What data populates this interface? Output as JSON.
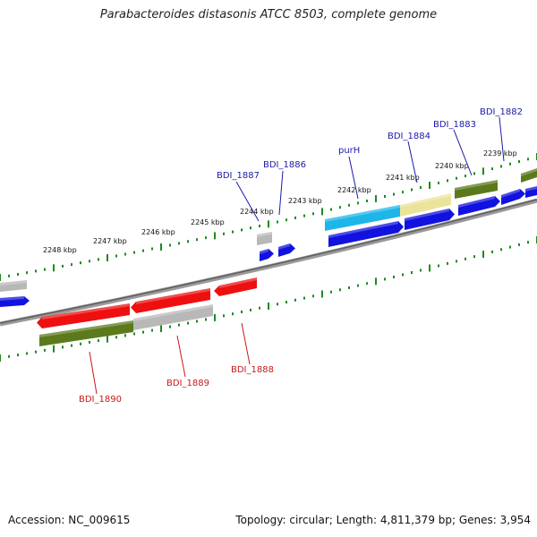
{
  "title": "Parabacteroides distasonis ATCC 8503, complete genome",
  "footer": {
    "accession": "Accession: NC_009615",
    "summary": "Topology: circular; Length: 4,811,379 bp; Genes: 3,954"
  },
  "colors": {
    "backbone": "#7a7a7a",
    "tick": "#1e8a1e",
    "forward_label": "#1a1aa8",
    "reverse_label": "#c81818",
    "blue_gene": "#1212e0",
    "cyan_gene": "#1eb6e8",
    "olive_gene": "#5c7a1c",
    "khaki_gene": "#ece39a",
    "gray_gene": "#b8b8b8",
    "red_gene": "#ee1010"
  },
  "scale_labels": [
    "2248 kbp",
    "2247 kbp",
    "2246 kbp",
    "2245 kbp",
    "2244 kbp",
    "2243 kbp",
    "2242 kbp",
    "2241 kbp",
    "2240 kbp",
    "2239 kbp"
  ],
  "forward_gene_labels": [
    "BDI_1887",
    "BDI_1886",
    "purH",
    "BDI_1884",
    "BDI_1883",
    "BDI_1882"
  ],
  "reverse_gene_labels": [
    "BDI_1890",
    "BDI_1889",
    "BDI_1888"
  ]
}
